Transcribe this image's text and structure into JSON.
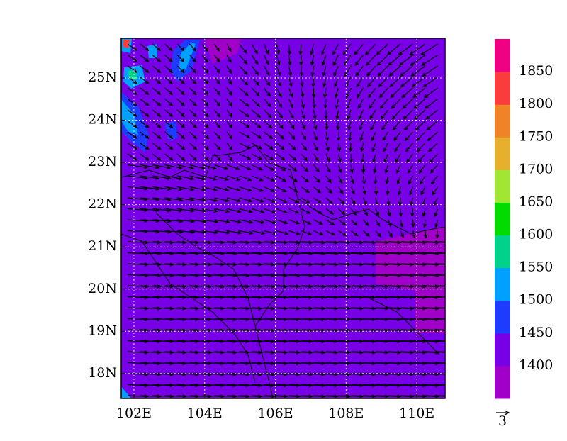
{
  "map": {
    "xlim": [
      101.64,
      110.8
    ],
    "ylim": [
      17.41,
      25.94
    ],
    "xticks": [
      {
        "value": 102,
        "label": "102E"
      },
      {
        "value": 104,
        "label": "104E"
      },
      {
        "value": 106,
        "label": "106E"
      },
      {
        "value": 108,
        "label": "108E"
      },
      {
        "value": 110,
        "label": "110E"
      }
    ],
    "yticks": [
      {
        "value": 18,
        "label": "18N"
      },
      {
        "value": 19,
        "label": "19N"
      },
      {
        "value": 20,
        "label": "20N"
      },
      {
        "value": 21,
        "label": "21N"
      },
      {
        "value": 22,
        "label": "22N"
      },
      {
        "value": 23,
        "label": "23N"
      },
      {
        "value": 24,
        "label": "24N"
      },
      {
        "value": 25,
        "label": "25N"
      }
    ],
    "grid": true
  },
  "colorbar": {
    "levels": [
      1400,
      1450,
      1500,
      1550,
      1600,
      1650,
      1700,
      1750,
      1800,
      1850
    ],
    "colors": [
      "#a000c8",
      "#7800e6",
      "#1e3cff",
      "#00a0ff",
      "#00d28c",
      "#00dc00",
      "#a0e632",
      "#e6af2d",
      "#f08228",
      "#fa3c3c",
      "#f00082"
    ]
  },
  "vector_key": {
    "label": "3"
  }
}
